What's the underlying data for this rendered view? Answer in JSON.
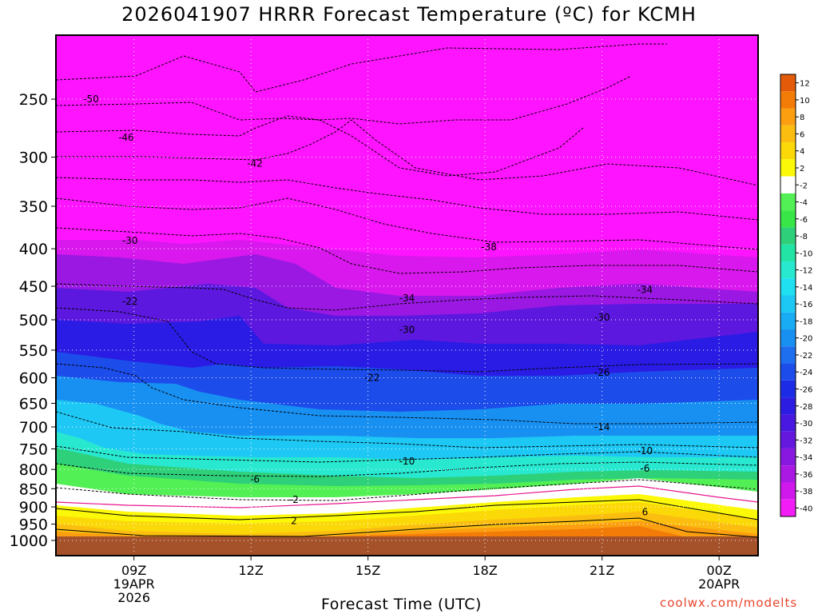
{
  "title": "2026041907 HRRR Forecast Temperature (ºC) for KCMH",
  "credit": "coolwx.com/modelts",
  "chart_data": {
    "type": "contour",
    "title": "2026041907 HRRR Forecast Temperature (ºC) for KCMH",
    "xlabel": "Forecast Time (UTC)",
    "ylabel": "",
    "x_range_hours": [
      7,
      25
    ],
    "y_range_hpa": [
      1000,
      200
    ],
    "y_scale": "log-pressure",
    "y_ticks": [
      250,
      300,
      350,
      400,
      450,
      500,
      550,
      600,
      650,
      700,
      750,
      800,
      850,
      900,
      950,
      1000
    ],
    "x_ticks": [
      {
        "hour": 9,
        "lines": [
          "09Z",
          "19APR",
          "2026"
        ]
      },
      {
        "hour": 12,
        "lines": [
          "12Z"
        ]
      },
      {
        "hour": 15,
        "lines": [
          "15Z"
        ]
      },
      {
        "hour": 18,
        "lines": [
          "18Z"
        ]
      },
      {
        "hour": 21,
        "lines": [
          "21Z"
        ]
      },
      {
        "hour": 24,
        "lines": [
          "00Z",
          "20APR"
        ]
      }
    ],
    "grid": true,
    "colorbar": {
      "placement": "right",
      "labels": [
        "12",
        "10",
        "8",
        "6",
        "4",
        "2",
        "-2",
        "-4",
        "-6",
        "-8",
        "-10",
        "-12",
        "-14",
        "-16",
        "-18",
        "-20",
        "-22",
        "-24",
        "-26",
        "-28",
        "-30",
        "-32",
        "-34",
        "-36",
        "-38",
        "-40"
      ],
      "colors": [
        "#e35b08",
        "#f37c08",
        "#fb9e10",
        "#fbbe10",
        "#fbd808",
        "#fbf808",
        "#ffffff",
        "#52f054",
        "#38e648",
        "#2ed07a",
        "#22e4a4",
        "#28e8d0",
        "#1ee0f0",
        "#1ec8f4",
        "#18acf4",
        "#1890f2",
        "#1e6ef0",
        "#1c4cea",
        "#1c2ce6",
        "#2c1ce2",
        "#4818e0",
        "#6418de",
        "#8818e0",
        "#aa18e4",
        "#d018ec",
        "#f21cf6"
      ]
    },
    "bottom_color": "#a5522a",
    "isotherm_labels": [
      {
        "value": "-50",
        "hour": 7.9,
        "p": 250
      },
      {
        "value": "-46",
        "hour": 8.8,
        "p": 282
      },
      {
        "value": "-42",
        "hour": 12.1,
        "p": 306
      },
      {
        "value": "-38",
        "hour": 18.1,
        "p": 398
      },
      {
        "value": "-34",
        "hour": 16.0,
        "p": 467
      },
      {
        "value": "-34",
        "hour": 22.1,
        "p": 455
      },
      {
        "value": "-30",
        "hour": 8.9,
        "p": 390
      },
      {
        "value": "-30",
        "hour": 16.0,
        "p": 516
      },
      {
        "value": "-30",
        "hour": 21.0,
        "p": 496
      },
      {
        "value": "-26",
        "hour": 21.0,
        "p": 590
      },
      {
        "value": "-22",
        "hour": 8.9,
        "p": 472
      },
      {
        "value": "-22",
        "hour": 15.1,
        "p": 600
      },
      {
        "value": "-14",
        "hour": 21.0,
        "p": 700
      },
      {
        "value": "-10",
        "hour": 22.1,
        "p": 755
      },
      {
        "value": "-10",
        "hour": 16.0,
        "p": 780
      },
      {
        "value": "-6",
        "hour": 22.1,
        "p": 798
      },
      {
        "value": "-6",
        "hour": 12.1,
        "p": 825
      },
      {
        "value": "-2",
        "hour": 13.1,
        "p": 880
      },
      {
        "value": "2",
        "hour": 13.1,
        "p": 940
      },
      {
        "value": "6",
        "hour": 22.1,
        "p": 915
      }
    ]
  }
}
